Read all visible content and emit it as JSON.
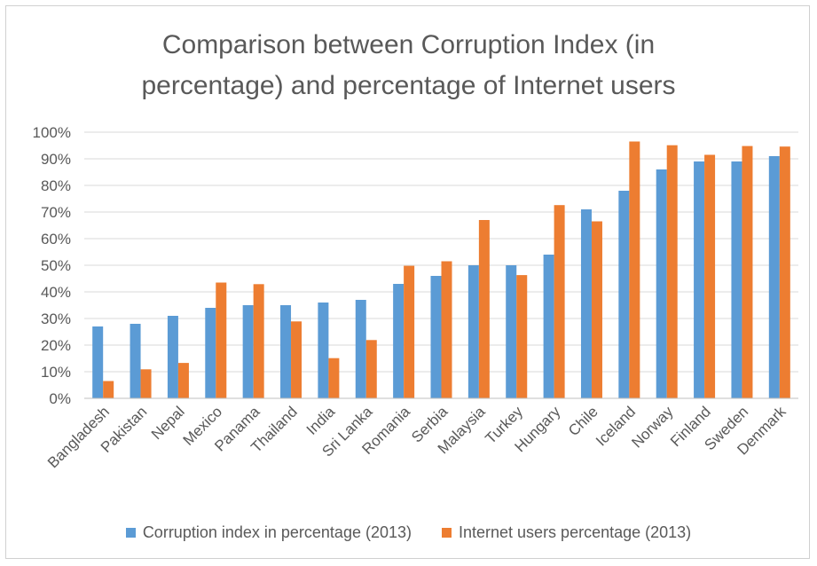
{
  "chart_data": {
    "type": "bar",
    "title": "Comparison between Corruption Index (in percentage)  and percentage of Internet users",
    "title_lines": [
      "Comparison between Corruption Index (in",
      "percentage)  and percentage of Internet users"
    ],
    "xlabel": "",
    "ylabel": "",
    "ylim": [
      0,
      100
    ],
    "yticks": [
      0,
      10,
      20,
      30,
      40,
      50,
      60,
      70,
      80,
      90,
      100
    ],
    "ytick_labels": [
      "0%",
      "10%",
      "20%",
      "30%",
      "40%",
      "50%",
      "60%",
      "70%",
      "80%",
      "90%",
      "100%"
    ],
    "grid": true,
    "legend_position": "bottom",
    "categories": [
      "Bangladesh",
      "Pakistan",
      "Nepal",
      "Mexico",
      "Panama",
      "Thailand",
      "India",
      "Sri Lanka",
      "Romania",
      "Serbia",
      "Malaysia",
      "Turkey",
      "Hungary",
      "Chile",
      "Iceland",
      "Norway",
      "Finland",
      "Sweden",
      "Denmark"
    ],
    "series": [
      {
        "name": "Corruption index in percentage (2013)",
        "color": "#5b9bd5",
        "values": [
          27,
          28,
          31,
          34,
          35,
          35,
          36,
          37,
          43,
          46,
          50,
          50,
          54,
          71,
          78,
          86,
          89,
          89,
          91
        ]
      },
      {
        "name": "Internet users percentage (2013)",
        "color": "#ed7d31",
        "values": [
          6.5,
          10.9,
          13.3,
          43.5,
          42.9,
          28.9,
          15.1,
          21.9,
          49.8,
          51.5,
          67,
          46.3,
          72.6,
          66.5,
          96.5,
          95.1,
          91.5,
          94.8,
          94.6
        ]
      }
    ]
  },
  "colors": {
    "text": "#595959",
    "grid": "#d9d9d9",
    "axis": "#bfbfbf"
  }
}
